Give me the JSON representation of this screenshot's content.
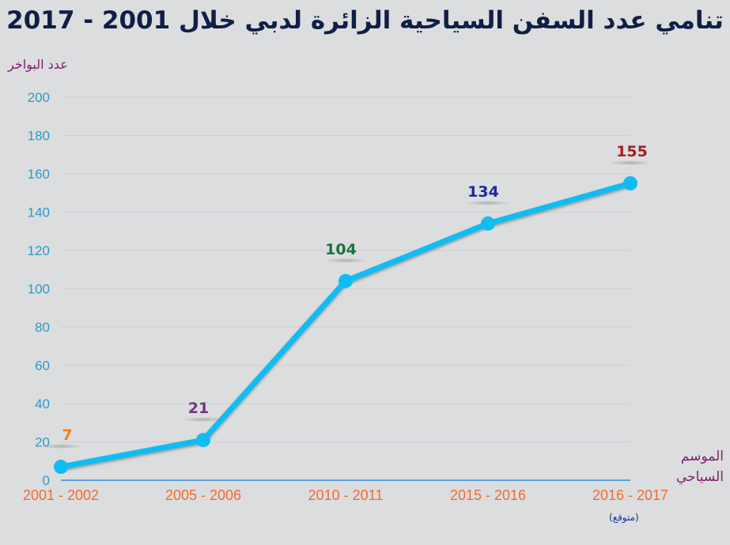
{
  "chart_data": {
    "type": "line",
    "title": "تنامي عدد السفن السياحية الزائرة لدبي خلال 2001 - 2017",
    "ylabel": "عدد البواخر",
    "xlabel": "الموسم السياحي",
    "x_note": "(متوقع)",
    "categories": [
      "2001 - 2002",
      "2005 - 2006",
      "2010 - 2011",
      "2015 - 2016",
      "2016 - 2017"
    ],
    "series": [
      {
        "name": "عدد البواخر",
        "values": [
          7,
          21,
          104,
          134,
          155
        ],
        "color": "#0fbdf3"
      }
    ],
    "data_label_colors": [
      "#f07f1e",
      "#6e3b78",
      "#1b7340",
      "#1a2a9c",
      "#a81e1e"
    ],
    "ylim": [
      0,
      200
    ],
    "yticks": [
      0,
      20,
      40,
      60,
      80,
      100,
      120,
      140,
      160,
      180,
      200
    ],
    "grid": true
  }
}
